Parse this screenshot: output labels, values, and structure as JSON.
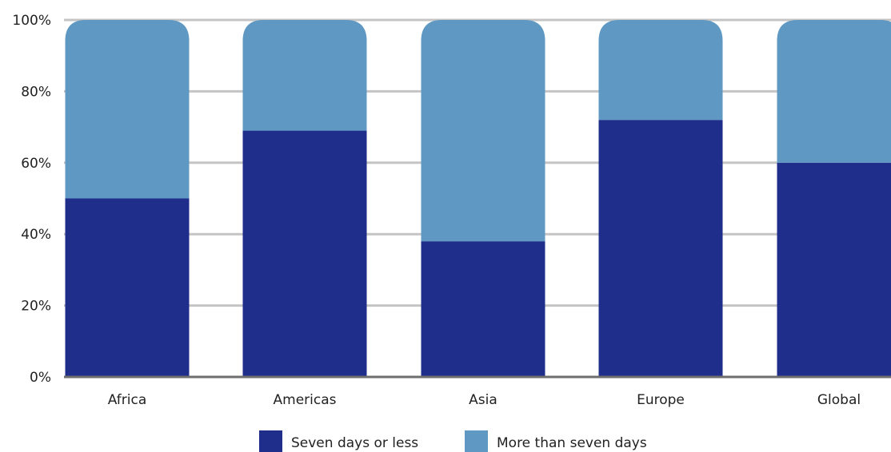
{
  "chart_data": {
    "type": "bar",
    "stacked": true,
    "categories": [
      "Africa",
      "Americas",
      "Asia",
      "Europe",
      "Global"
    ],
    "series": [
      {
        "name": "Seven days or less",
        "values": [
          50,
          69,
          38,
          72,
          60
        ],
        "color": "#1f2e8a"
      },
      {
        "name": "More than seven days",
        "values": [
          50,
          31,
          62,
          28,
          40
        ],
        "color": "#5f98c2"
      }
    ],
    "ylim": [
      0,
      100
    ],
    "yticks": [
      "0%",
      "20%",
      "40%",
      "60%",
      "80%",
      "100%"
    ],
    "grid": true,
    "legend_position": "bottom"
  }
}
